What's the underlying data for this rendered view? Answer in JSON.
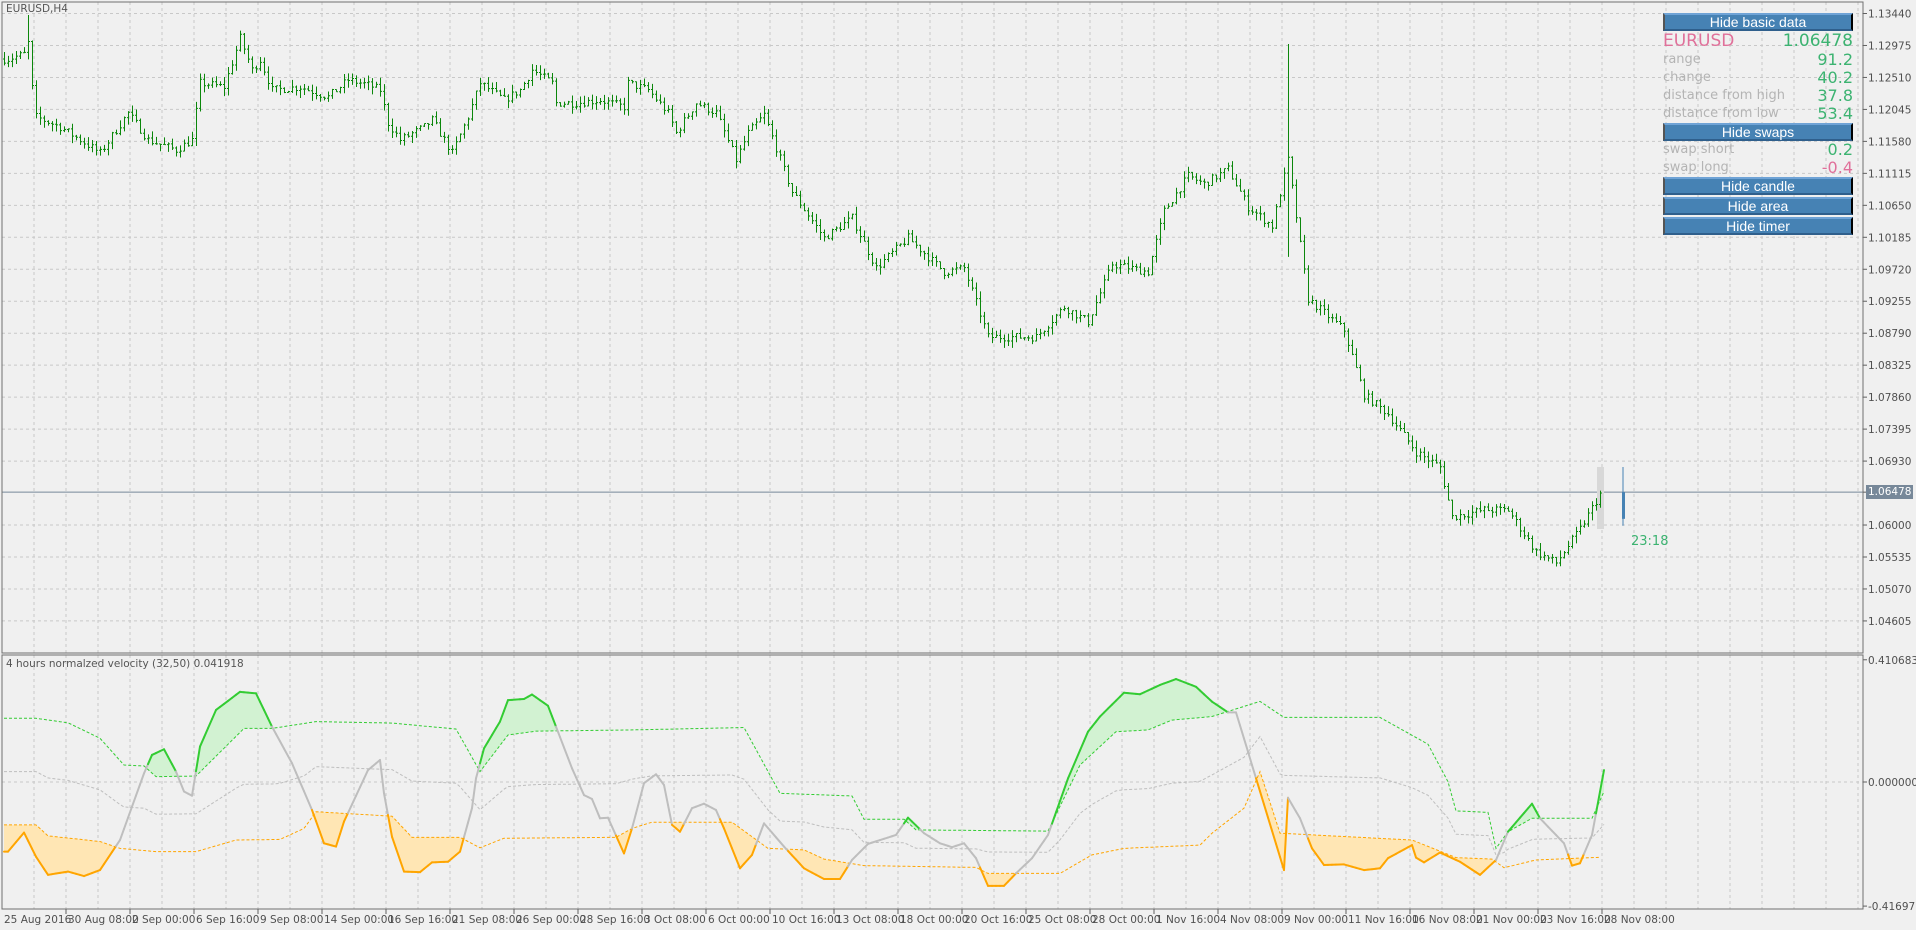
{
  "symbol_title": "EURUSD,H4",
  "indicator_title": "4 hours normalzed velocity (32,50) 0.041918",
  "timer": "23:18",
  "current_price": "1.06478",
  "panel": {
    "hide_basic_data": "Hide basic data",
    "symbol": "EURUSD",
    "price": "1.06478",
    "rows": [
      {
        "label": "range",
        "value": "91.2"
      },
      {
        "label": "change",
        "value": "40.2"
      },
      {
        "label": "distance from high",
        "value": "37.8"
      },
      {
        "label": "distance from low",
        "value": "53.4"
      }
    ],
    "hide_swaps": "Hide swaps",
    "swaps": [
      {
        "label": "swap short",
        "value": "0.2"
      },
      {
        "label": "swap long",
        "value": "-0.4"
      }
    ],
    "hide_candle": "Hide candle",
    "hide_area": "Hide area",
    "hide_timer": "Hide timer"
  },
  "colors": {
    "background": "#f0f0f0",
    "bars": "#0b870b",
    "grid": "#c8c8c8",
    "price_line": "#778899",
    "button": "#4682b4",
    "symbol": "#e0709a",
    "value_positive": "#3cb371",
    "value_negative": "#e0709a",
    "velocity_up": "#33cc33",
    "velocity_down": "#ffa500",
    "velocity_neutral": "#bebebe",
    "fill_up": "#d2f2d2",
    "fill_down": "#ffe6b4",
    "current_candle": "#4682b4"
  },
  "price_axis": {
    "labels": [
      "1.13440",
      "1.12975",
      "1.12510",
      "1.12045",
      "1.11580",
      "1.11115",
      "1.10650",
      "1.10185",
      "1.09720",
      "1.09255",
      "1.08790",
      "1.08325",
      "1.07860",
      "1.07395",
      "1.06930",
      "1.06478",
      "1.06000",
      "1.05535",
      "1.05070",
      "1.04605"
    ]
  },
  "indicator_axis": {
    "labels": [
      "0.410683",
      "0.000000",
      "-0.416972"
    ]
  },
  "time_axis": {
    "labels": [
      "25 Aug 2016",
      "30 Aug 08:00",
      "2 Sep 00:00",
      "6 Sep 16:00",
      "9 Sep 08:00",
      "14 Sep 00:00",
      "16 Sep 16:00",
      "21 Sep 08:00",
      "26 Sep 00:00",
      "28 Sep 16:00",
      "3 Oct 08:00",
      "6 Oct 00:00",
      "10 Oct 16:00",
      "13 Oct 08:00",
      "18 Oct 00:00",
      "20 Oct 16:00",
      "25 Oct 08:00",
      "28 Oct 00:00",
      "1 Nov 16:00",
      "4 Nov 08:00",
      "9 Nov 00:00",
      "11 Nov 16:00",
      "16 Nov 08:00",
      "21 Nov 00:00",
      "23 Nov 16:00",
      "28 Nov 08:00"
    ]
  },
  "chart_data": [
    {
      "type": "ohlc",
      "symbol": "EURUSD",
      "timeframe": "H4",
      "ylim": [
        1.0435,
        1.1355
      ],
      "close_by_bar": [
        [
          1,
          1.12778
        ],
        [
          5,
          1.1285
        ],
        [
          6,
          1.13011
        ],
        [
          7,
          1.12356
        ],
        [
          8,
          1.11935
        ],
        [
          14,
          1.11789
        ],
        [
          24,
          1.11411
        ],
        [
          31,
          1.11993
        ],
        [
          36,
          1.116
        ],
        [
          43,
          1.11455
        ],
        [
          47,
          1.116
        ],
        [
          49,
          1.12429
        ],
        [
          55,
          1.12371
        ],
        [
          59,
          1.13084
        ],
        [
          62,
          1.12618
        ],
        [
          64,
          1.12764
        ],
        [
          67,
          1.12327
        ],
        [
          74,
          1.12371
        ],
        [
          81,
          1.12226
        ],
        [
          86,
          1.12473
        ],
        [
          91,
          1.124
        ],
        [
          94,
          1.12327
        ],
        [
          96,
          1.11847
        ],
        [
          99,
          1.116
        ],
        [
          105,
          1.11789
        ],
        [
          107,
          1.11891
        ],
        [
          112,
          1.11411
        ],
        [
          116,
          1.11935
        ],
        [
          119,
          1.12429
        ],
        [
          125,
          1.12182
        ],
        [
          129,
          1.12327
        ],
        [
          132,
          1.12618
        ],
        [
          137,
          1.12429
        ],
        [
          138,
          1.12138
        ],
        [
          143,
          1.12138
        ],
        [
          149,
          1.12182
        ],
        [
          155,
          1.1208
        ],
        [
          156,
          1.12429
        ],
        [
          161,
          1.12327
        ],
        [
          166,
          1.11993
        ],
        [
          168,
          1.11702
        ],
        [
          173,
          1.12138
        ],
        [
          178,
          1.11993
        ],
        [
          183,
          1.11309
        ],
        [
          186,
          1.11702
        ],
        [
          190,
          1.11964
        ],
        [
          197,
          1.10844
        ],
        [
          205,
          1.10175
        ],
        [
          212,
          1.10466
        ],
        [
          218,
          1.09738
        ],
        [
          226,
          1.10175
        ],
        [
          235,
          1.0968
        ],
        [
          240,
          1.09738
        ],
        [
          246,
          1.08735
        ],
        [
          258,
          1.08735
        ],
        [
          265,
          1.09171
        ],
        [
          271,
          1.08953
        ],
        [
          277,
          1.09796
        ],
        [
          286,
          1.0968
        ],
        [
          290,
          1.10567
        ],
        [
          296,
          1.11076
        ],
        [
          300,
          1.1096
        ],
        [
          306,
          1.11178
        ],
        [
          311,
          1.10626
        ],
        [
          317,
          1.10349
        ],
        [
          321,
          1.11309
        ],
        [
          324,
          1.10073
        ],
        [
          326,
          1.09287
        ],
        [
          335,
          1.08836
        ],
        [
          340,
          1.07891
        ],
        [
          346,
          1.07615
        ],
        [
          353,
          1.07062
        ],
        [
          359,
          1.06844
        ],
        [
          362,
          1.06117
        ],
        [
          370,
          1.06219
        ],
        [
          376,
          1.06219
        ],
        [
          383,
          1.05608
        ],
        [
          388,
          1.05448
        ],
        [
          394,
          1.05943
        ],
        [
          399,
          1.06452
        ]
      ],
      "spike_highs": [
        [
          6,
          1.13418
        ],
        [
          321,
          1.12996
        ]
      ],
      "current_price": 1.06478,
      "current_candle": {
        "open": 1.06478,
        "close": 1.0609,
        "high": 1.06844,
        "low": 1.0599
      }
    },
    {
      "type": "line",
      "title": "4 hours normalzed velocity (32,50) 0.041918",
      "ylim": [
        -0.416972,
        0.410683
      ],
      "velocity": [
        [
          1,
          -0.234
        ],
        [
          5,
          -0.17
        ],
        [
          8,
          -0.251
        ],
        [
          11,
          -0.312
        ],
        [
          16,
          -0.301
        ],
        [
          20,
          -0.316
        ],
        [
          24,
          -0.296
        ],
        [
          29,
          -0.195
        ],
        [
          35,
          0.029
        ],
        [
          37,
          0.091
        ],
        [
          40,
          0.11
        ],
        [
          43,
          0.035
        ],
        [
          45,
          -0.032
        ],
        [
          47,
          -0.046
        ],
        [
          49,
          0.119
        ],
        [
          53,
          0.242
        ],
        [
          59,
          0.303
        ],
        [
          63,
          0.298
        ],
        [
          67,
          0.186
        ],
        [
          72,
          0.063
        ],
        [
          77,
          -0.094
        ],
        [
          80,
          -0.206
        ],
        [
          83,
          -0.217
        ],
        [
          85,
          -0.133
        ],
        [
          91,
          0.04
        ],
        [
          94,
          0.074
        ],
        [
          95,
          -0.038
        ],
        [
          97,
          -0.184
        ],
        [
          100,
          -0.301
        ],
        [
          104,
          -0.303
        ],
        [
          107,
          -0.27
        ],
        [
          111,
          -0.268
        ],
        [
          114,
          -0.234
        ],
        [
          117,
          -0.088
        ],
        [
          118,
          0.012
        ],
        [
          120,
          0.113
        ],
        [
          124,
          0.203
        ],
        [
          126,
          0.275
        ],
        [
          130,
          0.279
        ],
        [
          132,
          0.294
        ],
        [
          136,
          0.256
        ],
        [
          138,
          0.186
        ],
        [
          142,
          0.046
        ],
        [
          145,
          -0.044
        ],
        [
          147,
          -0.057
        ],
        [
          149,
          -0.122
        ],
        [
          151,
          -0.12
        ],
        [
          152,
          -0.15
        ],
        [
          155,
          -0.24
        ],
        [
          157,
          -0.156
        ],
        [
          160,
          -0.004
        ],
        [
          163,
          0.026
        ],
        [
          165,
          -0.01
        ],
        [
          167,
          -0.144
        ],
        [
          169,
          -0.167
        ],
        [
          172,
          -0.088
        ],
        [
          175,
          -0.073
        ],
        [
          178,
          -0.094
        ],
        [
          180,
          -0.156
        ],
        [
          184,
          -0.29
        ],
        [
          187,
          -0.245
        ],
        [
          190,
          -0.139
        ],
        [
          195,
          -0.217
        ],
        [
          200,
          -0.29
        ],
        [
          205,
          -0.326
        ],
        [
          209,
          -0.326
        ],
        [
          212,
          -0.262
        ],
        [
          216,
          -0.208
        ],
        [
          223,
          -0.178
        ],
        [
          226,
          -0.12
        ],
        [
          230,
          -0.172
        ],
        [
          234,
          -0.206
        ],
        [
          237,
          -0.219
        ],
        [
          240,
          -0.206
        ],
        [
          243,
          -0.256
        ],
        [
          246,
          -0.349
        ],
        [
          250,
          -0.349
        ],
        [
          253,
          -0.307
        ],
        [
          257,
          -0.256
        ],
        [
          261,
          -0.178
        ],
        [
          266,
          0.012
        ],
        [
          271,
          0.169
        ],
        [
          274,
          0.22
        ],
        [
          280,
          0.3
        ],
        [
          284,
          0.295
        ],
        [
          289,
          0.326
        ],
        [
          293,
          0.346
        ],
        [
          298,
          0.32
        ],
        [
          302,
          0.27
        ],
        [
          306,
          0.234
        ],
        [
          308,
          0.234
        ],
        [
          311,
          0.102
        ],
        [
          312,
          0.057
        ],
        [
          320,
          -0.296
        ],
        [
          321,
          -0.053
        ],
        [
          324,
          -0.122
        ],
        [
          327,
          -0.223
        ],
        [
          330,
          -0.279
        ],
        [
          335,
          -0.277
        ],
        [
          340,
          -0.296
        ],
        [
          344,
          -0.29
        ],
        [
          346,
          -0.256
        ],
        [
          352,
          -0.212
        ],
        [
          353,
          -0.254
        ],
        [
          355,
          -0.27
        ],
        [
          359,
          -0.237
        ],
        [
          364,
          -0.268
        ],
        [
          369,
          -0.312
        ],
        [
          373,
          -0.262
        ],
        [
          376,
          -0.167
        ],
        [
          382,
          -0.073
        ],
        [
          384,
          -0.122
        ],
        [
          390,
          -0.206
        ],
        [
          392,
          -0.281
        ],
        [
          394,
          -0.273
        ],
        [
          397,
          -0.178
        ],
        [
          400,
          0.04
        ]
      ],
      "upper_band": [
        [
          0,
          0.214
        ],
        [
          8,
          0.214
        ],
        [
          16,
          0.199
        ],
        [
          24,
          0.147
        ],
        [
          30,
          0.057
        ],
        [
          35,
          0.054
        ],
        [
          38,
          0.018
        ],
        [
          48,
          0.02
        ],
        [
          60,
          0.18
        ],
        [
          67,
          0.18
        ],
        [
          78,
          0.203
        ],
        [
          97,
          0.198
        ],
        [
          113,
          0.178
        ],
        [
          119,
          0.035
        ],
        [
          126,
          0.158
        ],
        [
          133,
          0.171
        ],
        [
          157,
          0.175
        ],
        [
          185,
          0.183
        ],
        [
          194,
          -0.038
        ],
        [
          200,
          -0.041
        ],
        [
          212,
          -0.047
        ],
        [
          215,
          -0.125
        ],
        [
          225,
          -0.125
        ],
        [
          228,
          -0.161
        ],
        [
          261,
          -0.165
        ],
        [
          269,
          0.057
        ],
        [
          278,
          0.169
        ],
        [
          286,
          0.175
        ],
        [
          292,
          0.208
        ],
        [
          302,
          0.22
        ],
        [
          314,
          0.271
        ],
        [
          320,
          0.217
        ],
        [
          344,
          0.217
        ],
        [
          356,
          0.127
        ],
        [
          361,
          0.001
        ],
        [
          363,
          -0.097
        ],
        [
          371,
          -0.102
        ],
        [
          373,
          -0.223
        ],
        [
          376,
          -0.167
        ],
        [
          382,
          -0.122
        ],
        [
          397,
          -0.122
        ],
        [
          400,
          -0.032
        ]
      ],
      "lower_band": [
        [
          0,
          -0.144
        ],
        [
          8,
          -0.144
        ],
        [
          11,
          -0.181
        ],
        [
          24,
          -0.2
        ],
        [
          29,
          -0.223
        ],
        [
          38,
          -0.234
        ],
        [
          48,
          -0.234
        ],
        [
          58,
          -0.195
        ],
        [
          69,
          -0.193
        ],
        [
          75,
          -0.156
        ],
        [
          78,
          -0.1
        ],
        [
          97,
          -0.115
        ],
        [
          102,
          -0.186
        ],
        [
          114,
          -0.186
        ],
        [
          119,
          -0.221
        ],
        [
          125,
          -0.189
        ],
        [
          153,
          -0.186
        ],
        [
          157,
          -0.156
        ],
        [
          162,
          -0.135
        ],
        [
          182,
          -0.135
        ],
        [
          191,
          -0.223
        ],
        [
          200,
          -0.228
        ],
        [
          205,
          -0.259
        ],
        [
          215,
          -0.281
        ],
        [
          243,
          -0.287
        ],
        [
          246,
          -0.307
        ],
        [
          264,
          -0.307
        ],
        [
          272,
          -0.245
        ],
        [
          280,
          -0.223
        ],
        [
          299,
          -0.212
        ],
        [
          302,
          -0.172
        ],
        [
          310,
          -0.088
        ],
        [
          314,
          0.035
        ],
        [
          319,
          -0.172
        ],
        [
          352,
          -0.195
        ],
        [
          363,
          -0.254
        ],
        [
          372,
          -0.259
        ],
        [
          375,
          -0.288
        ],
        [
          383,
          -0.262
        ],
        [
          399,
          -0.253
        ]
      ]
    }
  ]
}
